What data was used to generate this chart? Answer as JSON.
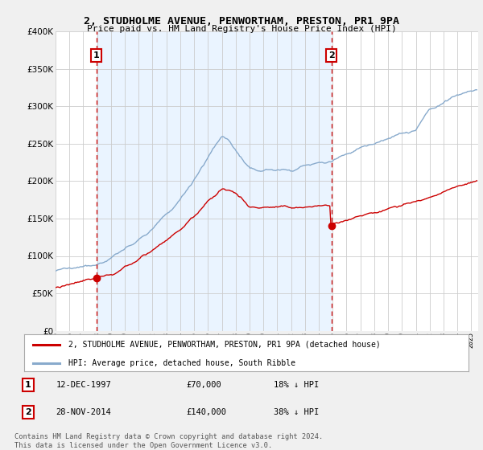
{
  "title": "2, STUDHOLME AVENUE, PENWORTHAM, PRESTON, PR1 9PA",
  "subtitle": "Price paid vs. HM Land Registry's House Price Index (HPI)",
  "ylim": [
    0,
    400000
  ],
  "yticks": [
    0,
    50000,
    100000,
    150000,
    200000,
    250000,
    300000,
    350000,
    400000
  ],
  "xlim_start": 1995.0,
  "xlim_end": 2025.5,
  "sale1_x": 1997.95,
  "sale1_y": 70000,
  "sale2_x": 2014.9,
  "sale2_y": 140000,
  "line_color_red": "#cc0000",
  "line_color_blue": "#88aacc",
  "dashed_color": "#cc0000",
  "marker_box_color": "#cc0000",
  "shade_color": "#ddeeff",
  "legend1": "2, STUDHOLME AVENUE, PENWORTHAM, PRESTON, PR1 9PA (detached house)",
  "legend2": "HPI: Average price, detached house, South Ribble",
  "background_color": "#f0f0f0",
  "plot_bg_color": "#ffffff",
  "grid_color": "#cccccc",
  "footnote": "Contains HM Land Registry data © Crown copyright and database right 2024.\nThis data is licensed under the Open Government Licence v3.0."
}
